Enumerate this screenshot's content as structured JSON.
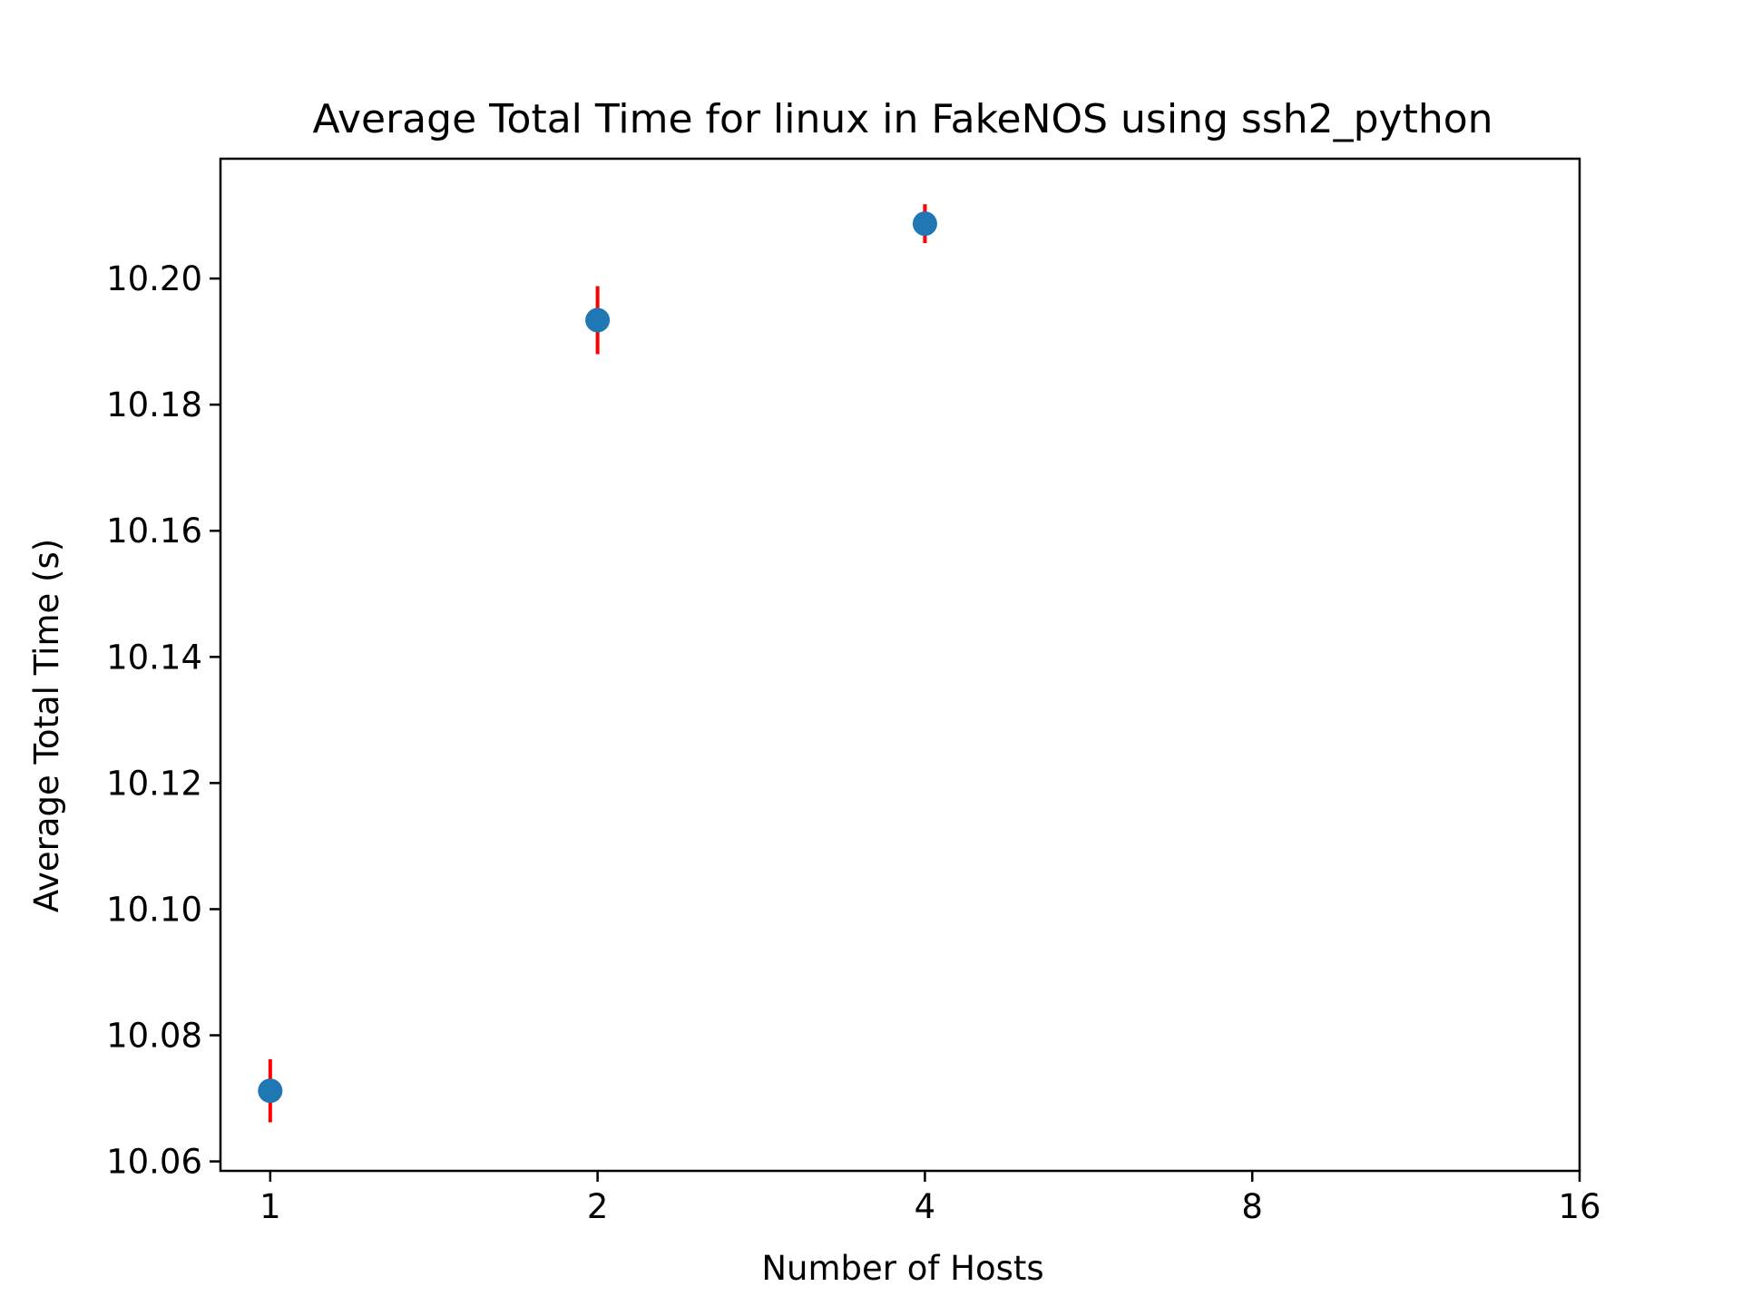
{
  "chart_data": {
    "type": "scatter",
    "title": "Average Total Time for linux in FakeNOS using ssh2_python",
    "xlabel": "Number of Hosts",
    "ylabel": "Average Total Time (s)",
    "x_scale": "log2",
    "xlim": [
      0.9,
      16
    ],
    "ylim": [
      10.0585,
      10.219
    ],
    "x_ticks": [
      1,
      2,
      4,
      8,
      16
    ],
    "x_tick_labels": [
      "1",
      "2",
      "4",
      "8",
      "16"
    ],
    "y_ticks": [
      10.06,
      10.08,
      10.1,
      10.12,
      10.14,
      10.16,
      10.18,
      10.2
    ],
    "y_tick_labels": [
      "10.06",
      "10.08",
      "10.10",
      "10.12",
      "10.14",
      "10.16",
      "10.18",
      "10.20"
    ],
    "grid": false,
    "series": [
      {
        "x": [
          1,
          2,
          4
        ],
        "y": [
          10.0712,
          10.1934,
          10.2087
        ],
        "yerr": [
          0.005,
          0.0054,
          0.0031
        ],
        "marker_color": "#1f77b4",
        "errorbar_color": "#ff0000"
      }
    ]
  }
}
